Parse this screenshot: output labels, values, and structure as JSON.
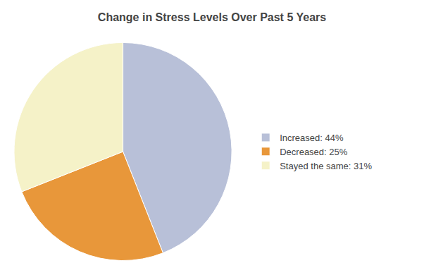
{
  "chart_data": {
    "type": "pie",
    "title": "Change in Stress Levels Over Past 5 Years",
    "categories": [
      "Increased: 44%",
      "Decreased: 25%",
      "Stayed the same: 31%"
    ],
    "values": [
      44,
      25,
      31
    ],
    "colors": [
      "#b8c0d8",
      "#e8973a",
      "#f5f2c8"
    ],
    "legend": "right"
  }
}
